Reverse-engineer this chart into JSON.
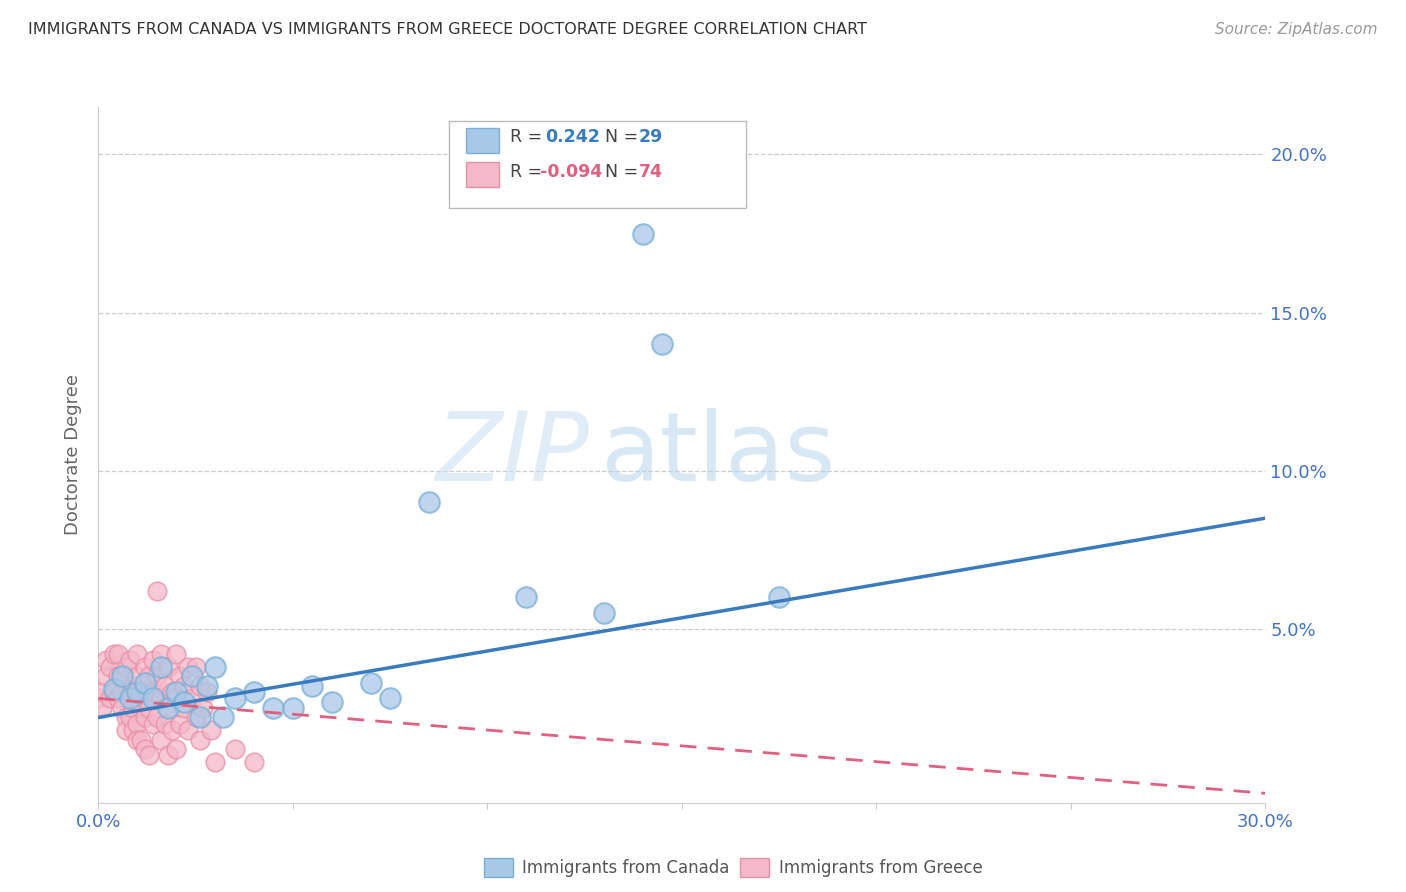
{
  "title": "IMMIGRANTS FROM CANADA VS IMMIGRANTS FROM GREECE DOCTORATE DEGREE CORRELATION CHART",
  "source": "Source: ZipAtlas.com",
  "ylabel": "Doctorate Degree",
  "xlim": [
    0.0,
    0.3
  ],
  "ylim": [
    -0.005,
    0.215
  ],
  "xticks": [
    0.0,
    0.05,
    0.1,
    0.15,
    0.2,
    0.25,
    0.3
  ],
  "xtick_labels": [
    "0.0%",
    "",
    "",
    "",
    "",
    "",
    "30.0%"
  ],
  "yticks_right": [
    0.05,
    0.1,
    0.15,
    0.2
  ],
  "ytick_labels_right": [
    "5.0%",
    "10.0%",
    "15.0%",
    "20.0%"
  ],
  "background_color": "#ffffff",
  "legend": {
    "canada_R": "0.242",
    "canada_N": "29",
    "greece_R": "-0.094",
    "greece_N": "74"
  },
  "canada_color": "#a8c8e8",
  "canada_edge_color": "#7bafd4",
  "greece_color": "#f4b8c8",
  "greece_edge_color": "#e890a8",
  "canada_line_color": "#3a7bbf",
  "greece_line_color": "#e06080",
  "text_color": "#4472c4",
  "title_color": "#333333",
  "canada_scatter": [
    [
      0.004,
      0.031
    ],
    [
      0.006,
      0.035
    ],
    [
      0.008,
      0.028
    ],
    [
      0.01,
      0.03
    ],
    [
      0.012,
      0.033
    ],
    [
      0.014,
      0.028
    ],
    [
      0.016,
      0.038
    ],
    [
      0.018,
      0.025
    ],
    [
      0.02,
      0.03
    ],
    [
      0.022,
      0.027
    ],
    [
      0.024,
      0.035
    ],
    [
      0.026,
      0.022
    ],
    [
      0.028,
      0.032
    ],
    [
      0.03,
      0.038
    ],
    [
      0.032,
      0.022
    ],
    [
      0.035,
      0.028
    ],
    [
      0.04,
      0.03
    ],
    [
      0.045,
      0.025
    ],
    [
      0.05,
      0.025
    ],
    [
      0.055,
      0.032
    ],
    [
      0.06,
      0.027
    ],
    [
      0.07,
      0.033
    ],
    [
      0.075,
      0.028
    ],
    [
      0.085,
      0.09
    ],
    [
      0.11,
      0.06
    ],
    [
      0.13,
      0.055
    ],
    [
      0.14,
      0.175
    ],
    [
      0.145,
      0.14
    ],
    [
      0.175,
      0.06
    ]
  ],
  "greece_scatter": [
    [
      0.0,
      0.028
    ],
    [
      0.001,
      0.03
    ],
    [
      0.001,
      0.025
    ],
    [
      0.002,
      0.035
    ],
    [
      0.002,
      0.04
    ],
    [
      0.003,
      0.038
    ],
    [
      0.003,
      0.028
    ],
    [
      0.004,
      0.042
    ],
    [
      0.004,
      0.03
    ],
    [
      0.005,
      0.035
    ],
    [
      0.005,
      0.042
    ],
    [
      0.005,
      0.028
    ],
    [
      0.006,
      0.035
    ],
    [
      0.006,
      0.03
    ],
    [
      0.006,
      0.025
    ],
    [
      0.007,
      0.038
    ],
    [
      0.007,
      0.022
    ],
    [
      0.007,
      0.018
    ],
    [
      0.008,
      0.04
    ],
    [
      0.008,
      0.03
    ],
    [
      0.008,
      0.022
    ],
    [
      0.009,
      0.032
    ],
    [
      0.009,
      0.025
    ],
    [
      0.009,
      0.018
    ],
    [
      0.01,
      0.042
    ],
    [
      0.01,
      0.035
    ],
    [
      0.01,
      0.02
    ],
    [
      0.01,
      0.015
    ],
    [
      0.011,
      0.03
    ],
    [
      0.011,
      0.025
    ],
    [
      0.011,
      0.015
    ],
    [
      0.012,
      0.038
    ],
    [
      0.012,
      0.028
    ],
    [
      0.012,
      0.022
    ],
    [
      0.012,
      0.012
    ],
    [
      0.013,
      0.035
    ],
    [
      0.013,
      0.025
    ],
    [
      0.013,
      0.01
    ],
    [
      0.014,
      0.04
    ],
    [
      0.014,
      0.03
    ],
    [
      0.014,
      0.02
    ],
    [
      0.015,
      0.062
    ],
    [
      0.015,
      0.035
    ],
    [
      0.015,
      0.022
    ],
    [
      0.016,
      0.042
    ],
    [
      0.016,
      0.028
    ],
    [
      0.016,
      0.015
    ],
    [
      0.017,
      0.032
    ],
    [
      0.017,
      0.02
    ],
    [
      0.018,
      0.038
    ],
    [
      0.018,
      0.025
    ],
    [
      0.018,
      0.01
    ],
    [
      0.019,
      0.03
    ],
    [
      0.019,
      0.018
    ],
    [
      0.02,
      0.042
    ],
    [
      0.02,
      0.028
    ],
    [
      0.02,
      0.012
    ],
    [
      0.021,
      0.035
    ],
    [
      0.021,
      0.02
    ],
    [
      0.022,
      0.032
    ],
    [
      0.022,
      0.025
    ],
    [
      0.023,
      0.038
    ],
    [
      0.023,
      0.018
    ],
    [
      0.024,
      0.028
    ],
    [
      0.025,
      0.038
    ],
    [
      0.025,
      0.022
    ],
    [
      0.026,
      0.032
    ],
    [
      0.026,
      0.015
    ],
    [
      0.027,
      0.025
    ],
    [
      0.028,
      0.03
    ],
    [
      0.029,
      0.018
    ],
    [
      0.03,
      0.008
    ],
    [
      0.035,
      0.012
    ],
    [
      0.04,
      0.008
    ]
  ],
  "canada_line": {
    "x0": 0.0,
    "y0": 0.022,
    "x1": 0.3,
    "y1": 0.085
  },
  "greece_line": {
    "x0": 0.0,
    "y0": 0.028,
    "x1": 0.3,
    "y1": -0.002
  }
}
